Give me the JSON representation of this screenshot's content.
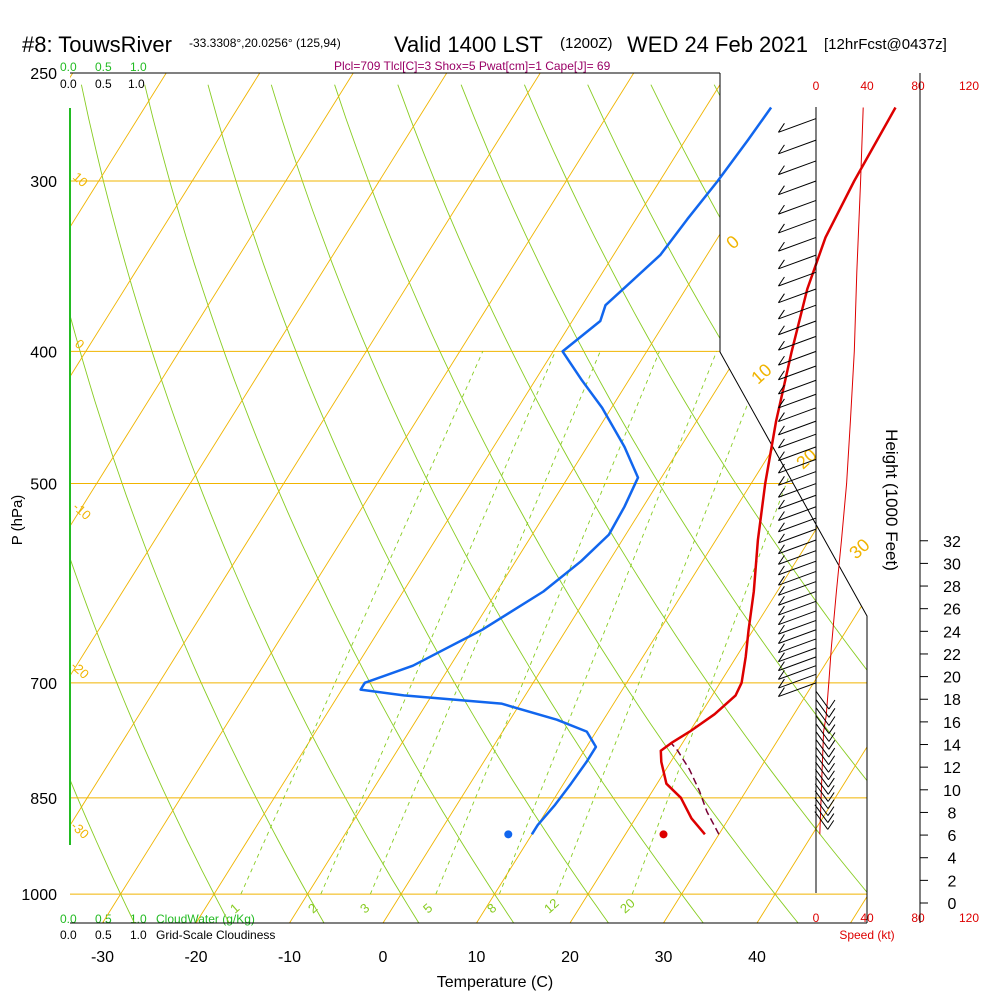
{
  "header": {
    "station": "#8: TouwsRiver",
    "location": "-33.3308°,20.0256° (125,94)",
    "valid": "Valid 1400 LST",
    "zulu": "(1200Z)",
    "date": "WED 24 Feb 2021",
    "forecast": "[12hrFcst@0437z]"
  },
  "indices": "Plcl=709 Tlcl[C]=3 Shox=5 Pwat[cm]=1 Cape[J]= 69",
  "cloud_scales": {
    "cloudwater": [
      "0.0",
      "0.5",
      "1.0"
    ],
    "cloudiness": [
      "0.0",
      "0.5",
      "1.0"
    ],
    "cloudwater_label": "CloudWater (g/Kg)",
    "cloudiness_label": "Grid-Scale Cloudiness"
  },
  "speed": {
    "ticks": [
      "0",
      "40",
      "80",
      "120"
    ],
    "label": "Speed (kt)"
  },
  "colors": {
    "isotherm": "#f0b400",
    "adiabat": "#88cc22",
    "mixing": "#88cc22",
    "temperature": "#dd0000",
    "dewpoint": "#1166ee",
    "parcel": "#770033",
    "cloud_axis": "#22bb22"
  },
  "chart_data": {
    "type": "line",
    "subtype": "skew-T log-P sounding",
    "xlabel": "Temperature (C)",
    "ylabel": "P (hPa)",
    "y2label": "Height (1000 Feet)",
    "x_ticks": [
      -30,
      -20,
      -10,
      0,
      10,
      20,
      30,
      40
    ],
    "p_ticks": [
      250,
      300,
      400,
      500,
      700,
      850,
      1000
    ],
    "height_ticks": [
      0,
      2,
      4,
      6,
      8,
      10,
      12,
      14,
      16,
      18,
      20,
      22,
      24,
      26,
      28,
      30,
      32
    ],
    "y_scale": "log",
    "grid": true,
    "isotherm_labels": [
      "-10",
      "0",
      "10",
      "20",
      "30"
    ],
    "adiabat_labels": [
      "10",
      "0",
      "-10",
      "-20",
      "-30"
    ],
    "mixing_labels": [
      "1",
      "2",
      "3",
      "5",
      "8",
      "12",
      "20"
    ],
    "mixing_ratios": [
      1,
      2,
      3,
      5,
      8,
      12,
      20
    ],
    "series": [
      {
        "role": "temperature",
        "points": [
          [
            904,
            28.5
          ],
          [
            880,
            26
          ],
          [
            850,
            23.5
          ],
          [
            830,
            21
          ],
          [
            800,
            19
          ],
          [
            785,
            18.2
          ],
          [
            775,
            18.8
          ],
          [
            760,
            20
          ],
          [
            738,
            21.5
          ],
          [
            715,
            22.5
          ],
          [
            700,
            22.3
          ],
          [
            670,
            21
          ],
          [
            640,
            19.5
          ],
          [
            600,
            17.5
          ],
          [
            550,
            14.5
          ],
          [
            500,
            11.5
          ],
          [
            450,
            8.5
          ],
          [
            400,
            5.5
          ],
          [
            360,
            3
          ],
          [
            330,
            1.5
          ],
          [
            300,
            0.8
          ],
          [
            265,
            0.3
          ]
        ]
      },
      {
        "role": "dewpoint",
        "points": [
          [
            904,
            10
          ],
          [
            890,
            10
          ],
          [
            860,
            10.5
          ],
          [
            830,
            10.8
          ],
          [
            800,
            11
          ],
          [
            780,
            11
          ],
          [
            760,
            9
          ],
          [
            745,
            5
          ],
          [
            725,
            -2
          ],
          [
            715,
            -13
          ],
          [
            708,
            -18
          ],
          [
            700,
            -18
          ],
          [
            680,
            -14
          ],
          [
            640,
            -9
          ],
          [
            600,
            -5
          ],
          [
            570,
            -3
          ],
          [
            545,
            -1.8
          ],
          [
            520,
            -2
          ],
          [
            495,
            -2.5
          ],
          [
            470,
            -6
          ],
          [
            440,
            -11
          ],
          [
            420,
            -15
          ],
          [
            400,
            -19
          ],
          [
            380,
            -17
          ],
          [
            370,
            -17.5
          ],
          [
            340,
            -15
          ],
          [
            320,
            -14.5
          ],
          [
            300,
            -13.8
          ],
          [
            280,
            -13.3
          ],
          [
            265,
            -13
          ]
        ]
      },
      {
        "role": "parcel",
        "points": [
          [
            904,
            30
          ],
          [
            870,
            27.2
          ],
          [
            840,
            25
          ],
          [
            810,
            22.5
          ],
          [
            785,
            20
          ],
          [
            775,
            18.8
          ]
        ]
      },
      {
        "role": "wind speed",
        "points": [
          [
            904,
            3
          ],
          [
            850,
            4
          ],
          [
            800,
            5
          ],
          [
            760,
            6
          ],
          [
            740,
            8
          ],
          [
            700,
            10
          ],
          [
            660,
            12
          ],
          [
            600,
            16
          ],
          [
            550,
            20
          ],
          [
            500,
            24
          ],
          [
            450,
            27
          ],
          [
            400,
            30
          ],
          [
            350,
            32
          ],
          [
            300,
            35
          ],
          [
            265,
            37
          ]
        ]
      }
    ],
    "surface_temperature": 30,
    "surface_dewpoint": 13.4
  }
}
